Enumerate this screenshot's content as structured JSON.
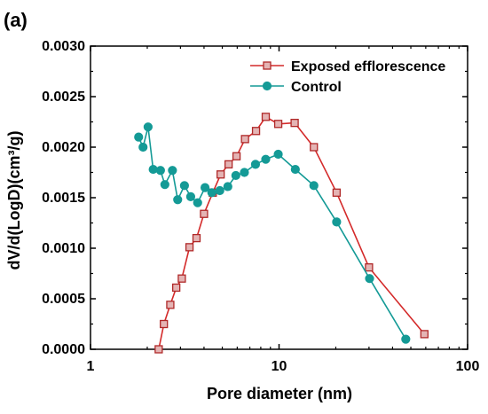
{
  "panel_label": "(a)",
  "colors": {
    "exposed_line": "#d42a2a",
    "exposed_marker_fill": "#e4b4b4",
    "exposed_marker_stroke": "#b02828",
    "control": "#149a96",
    "axis": "#000000"
  },
  "chart_data": {
    "type": "line",
    "title": "",
    "xlabel": "Pore diameter (nm)",
    "ylabel": "dV/d(LogD)(cm³/g)",
    "xscale": "log",
    "xlim": [
      1,
      100
    ],
    "ylim": [
      0,
      0.003
    ],
    "xticks": [
      1,
      10,
      100
    ],
    "xtick_labels": [
      "1",
      "10",
      "100"
    ],
    "yticks": [
      0,
      0.0005,
      0.001,
      0.0015,
      0.002,
      0.0025,
      0.003
    ],
    "ytick_labels": [
      "0.0000",
      "0.0005",
      "0.0010",
      "0.0015",
      "0.0020",
      "0.0025",
      "0.0030"
    ],
    "grid": false,
    "legend_position": "top-right",
    "series": [
      {
        "name": "Exposed efflorescence",
        "marker": "square",
        "x": [
          2.3,
          2.45,
          2.65,
          2.85,
          3.05,
          3.35,
          3.65,
          4.0,
          4.45,
          4.9,
          5.4,
          5.95,
          6.6,
          7.55,
          8.5,
          9.9,
          12.1,
          15.3,
          20.2,
          30.0,
          59.0
        ],
        "y": [
          0.0,
          0.00025,
          0.00044,
          0.00061,
          0.0007,
          0.00101,
          0.0011,
          0.00134,
          0.00155,
          0.00173,
          0.00183,
          0.00191,
          0.00208,
          0.00216,
          0.0023,
          0.00223,
          0.00224,
          0.002,
          0.00155,
          0.00081,
          0.00015
        ]
      },
      {
        "name": "Control",
        "marker": "circle",
        "x": [
          1.8,
          1.9,
          2.02,
          2.15,
          2.35,
          2.48,
          2.72,
          2.9,
          3.15,
          3.4,
          3.7,
          4.05,
          4.4,
          4.85,
          5.35,
          5.9,
          6.55,
          7.5,
          8.5,
          9.9,
          12.2,
          15.3,
          20.2,
          30.2,
          47.0
        ],
        "y": [
          0.0021,
          0.002,
          0.0022,
          0.00178,
          0.00177,
          0.00163,
          0.00177,
          0.00148,
          0.00162,
          0.00151,
          0.00145,
          0.0016,
          0.00155,
          0.00157,
          0.00161,
          0.00172,
          0.00175,
          0.00183,
          0.00188,
          0.00193,
          0.00178,
          0.00162,
          0.00126,
          0.0007,
          0.0001
        ]
      }
    ]
  }
}
